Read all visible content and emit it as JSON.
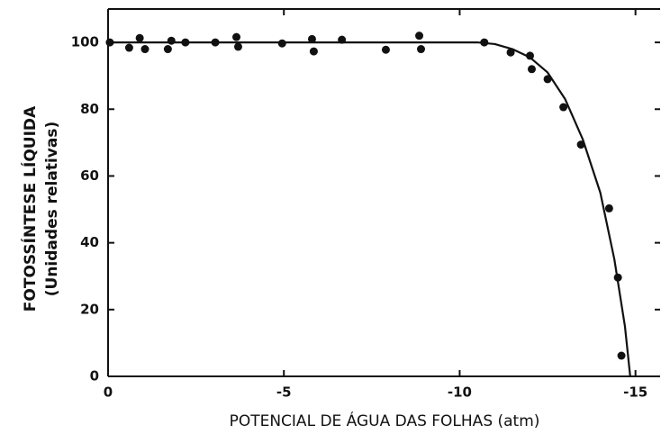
{
  "chart_data": {
    "type": "scatter",
    "xlabel": "POTENCIAL DE ÁGUA DAS FOLHAS (atm)",
    "ylabel": [
      "FOTOSSÍNTESE LÍQUIDA",
      "(Unidades relativas)"
    ],
    "xlim": [
      0,
      -15.7
    ],
    "xticks": [
      0,
      -5,
      -10,
      -15
    ],
    "ylim": [
      0,
      110
    ],
    "yticks": [
      0,
      20,
      40,
      60,
      80,
      100
    ],
    "series": [
      {
        "type": "scatter",
        "color": "#111",
        "x": [
          -0.05,
          -0.6,
          -0.9,
          -1.05,
          -1.7,
          -1.8,
          -2.2,
          -3.05,
          -3.65,
          -3.7,
          -4.95,
          -5.8,
          -5.85,
          -6.65,
          -7.9,
          -8.85,
          -8.9,
          -10.7,
          -11.45,
          -12.0,
          -12.05,
          -12.5,
          -12.95,
          -13.45,
          -14.25,
          -14.5,
          -14.6
        ],
        "values": [
          100,
          98.4,
          101.3,
          98,
          98,
          100.5,
          100,
          100,
          101.6,
          98.7,
          99.7,
          101,
          97.3,
          100.8,
          97.8,
          102,
          98,
          100,
          97,
          96,
          92,
          89,
          80.6,
          69.4,
          50.3,
          29.6,
          6.2
        ]
      },
      {
        "type": "line",
        "color": "#111",
        "x": [
          0,
          -10.5,
          -11,
          -11.5,
          -12,
          -12.5,
          -13,
          -13.5,
          -14,
          -14.4,
          -14.7,
          -14.85
        ],
        "values": [
          100,
          100,
          99.5,
          98,
          95.5,
          91,
          83,
          71,
          55,
          35,
          15,
          0
        ]
      }
    ]
  }
}
